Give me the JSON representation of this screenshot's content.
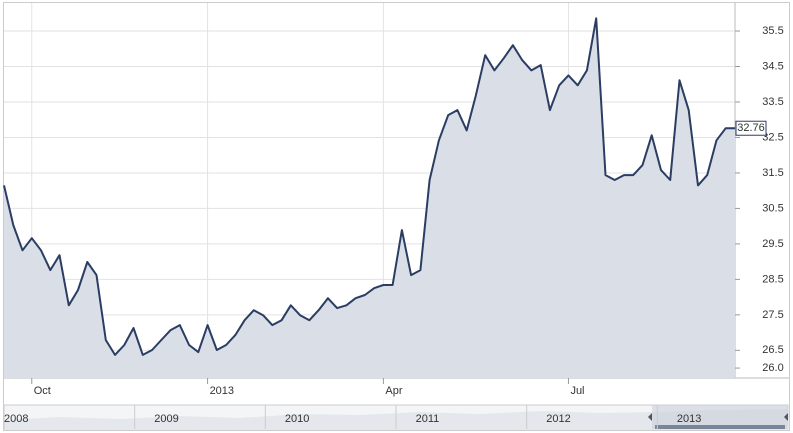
{
  "chart_data": {
    "type": "area",
    "categories": [
      null,
      null,
      null,
      "Oct",
      null,
      null,
      null,
      null,
      null,
      null,
      null,
      null,
      null,
      null,
      null,
      null,
      null,
      null,
      null,
      null,
      null,
      null,
      "2013",
      null,
      null,
      null,
      null,
      null,
      null,
      null,
      null,
      null,
      null,
      null,
      null,
      null,
      null,
      null,
      null,
      null,
      null,
      "Apr",
      null,
      null,
      null,
      null,
      null,
      null,
      null,
      null,
      null,
      null,
      null,
      null,
      null,
      null,
      null,
      null,
      null,
      null,
      null,
      "Jul",
      null,
      null,
      null,
      null,
      null,
      null,
      null,
      null,
      null,
      null,
      null,
      null,
      null,
      null,
      null,
      null,
      null,
      null
    ],
    "values": [
      31.15,
      30.03,
      29.32,
      29.66,
      29.32,
      28.76,
      29.18,
      27.77,
      28.2,
      28.99,
      28.62,
      26.79,
      26.37,
      26.65,
      27.13,
      26.37,
      26.51,
      26.79,
      27.07,
      27.21,
      26.65,
      26.45,
      27.21,
      26.51,
      26.65,
      26.93,
      27.35,
      27.63,
      27.49,
      27.21,
      27.35,
      27.77,
      27.49,
      27.35,
      27.63,
      27.97,
      27.69,
      27.77,
      27.97,
      28.06,
      28.25,
      28.34,
      28.34,
      29.89,
      28.62,
      28.76,
      31.3,
      32.42,
      33.13,
      33.27,
      32.7,
      33.69,
      34.82,
      34.39,
      34.73,
      35.1,
      34.68,
      34.39,
      34.54,
      33.27,
      33.97,
      34.25,
      33.97,
      34.39,
      35.86,
      31.44,
      31.3,
      31.44,
      31.44,
      31.72,
      32.56,
      31.58,
      31.3,
      34.11,
      33.27,
      31.15,
      31.44,
      32.42,
      32.76,
      32.76
    ],
    "color": "#2b3d63",
    "fill": "#d9dee7",
    "ylim": [
      25.72,
      36.29
    ],
    "yticks": [
      {
        "value": 26,
        "label": "26.0"
      },
      26.5,
      27.5,
      28.5,
      29.5,
      30.5,
      31.5,
      32.5,
      33.5,
      34.5,
      35.5
    ],
    "grid": true,
    "y_axis_side": "right",
    "navigator": {
      "labels": [
        "2008",
        "2009",
        "2010",
        "2011",
        "2012",
        "2013"
      ]
    }
  }
}
